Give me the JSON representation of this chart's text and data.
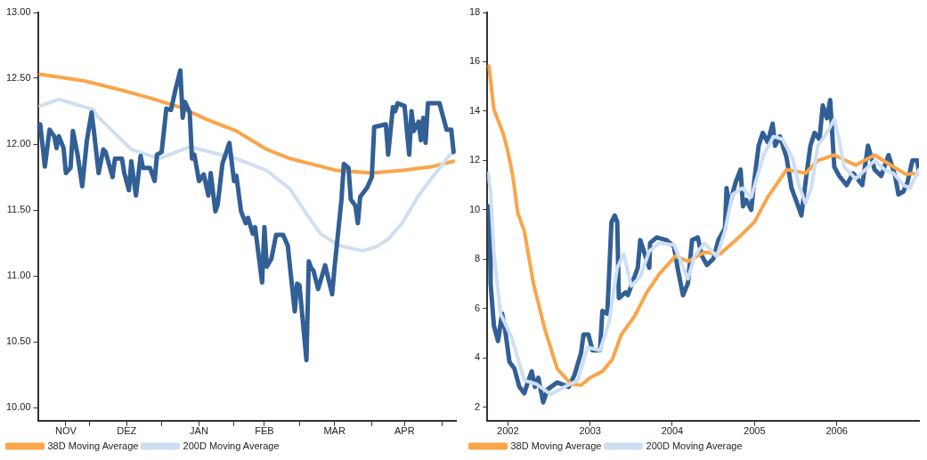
{
  "chart_data": [
    {
      "type": "line",
      "legend": "bottom left",
      "xlim": [
        "2006-11-09",
        "2007-05-07"
      ],
      "xticks": [
        {
          "value": "2006-11-21",
          "label": "NOV"
        },
        {
          "value": "2006-12-01",
          "label": null
        },
        {
          "value": "2006-12-17",
          "label": "DEZ"
        },
        {
          "value": "2007-01-01",
          "label": null
        },
        {
          "value": "2007-01-17",
          "label": "JAN"
        },
        {
          "value": "2007-02-01",
          "label": null
        },
        {
          "value": "2007-02-14",
          "label": "FEB"
        },
        {
          "value": "2007-03-01",
          "label": null
        },
        {
          "value": "2007-03-16",
          "label": "MAR"
        },
        {
          "value": "2007-04-01",
          "label": null
        },
        {
          "value": "2007-04-15",
          "label": "APR"
        },
        {
          "value": "2007-05-01",
          "label": null
        }
      ],
      "ylim": [
        9.9,
        13
      ],
      "yticks": [
        {
          "value": 10,
          "label": "10.00"
        },
        {
          "value": 10.5,
          "label": "10.50"
        },
        {
          "value": 11,
          "label": "11.00"
        },
        {
          "value": 11.5,
          "label": "11.50"
        },
        {
          "value": 12,
          "label": "12.00"
        },
        {
          "value": 12.5,
          "label": "12.50"
        },
        {
          "value": 13,
          "label": "13.00"
        }
      ],
      "series": [
        {
          "name": "38D Moving Average",
          "color": "#f9a54a",
          "x": [
            "2006-11-10",
            "2006-11-29",
            "2006-12-17",
            "2006-12-27",
            "2007-01-09",
            "2007-01-20",
            "2007-02-02",
            "2007-02-15",
            "2007-02-25",
            "2007-03-17",
            "2007-04-01",
            "2007-04-14",
            "2007-04-27",
            "2007-05-06"
          ],
          "values": [
            12.53,
            12.48,
            12.4,
            12.35,
            12.28,
            12.19,
            12.1,
            11.96,
            11.89,
            11.8,
            11.78,
            11.8,
            11.83,
            11.87
          ]
        },
        {
          "name": "200D Moving Average",
          "color": "#cfdff2",
          "x": [
            "2006-11-10",
            "2006-11-18",
            "2006-12-03",
            "2006-12-04",
            "2006-12-19",
            "2006-12-31",
            "2007-01-13",
            "2007-02-02",
            "2007-02-15",
            "2007-02-25",
            "2007-03-04",
            "2007-03-10",
            "2007-03-18",
            "2007-03-28",
            "2007-04-03",
            "2007-04-08",
            "2007-04-14",
            "2007-04-21",
            "2007-04-27",
            "2007-05-04",
            "2007-05-06"
          ],
          "values": [
            12.29,
            12.34,
            12.26,
            12.22,
            11.96,
            11.89,
            11.98,
            11.89,
            11.8,
            11.66,
            11.47,
            11.32,
            11.23,
            11.19,
            11.22,
            11.28,
            11.4,
            11.61,
            11.75,
            11.91,
            11.94
          ]
        },
        {
          "color": "#315f96",
          "x": [
            "2006-11-10",
            "2006-11-12",
            "2006-11-14",
            "2006-11-16",
            "2006-11-17",
            "2006-11-18",
            "2006-11-20",
            "2006-11-21",
            "2006-11-23",
            "2006-11-24",
            "2006-11-26",
            "2006-11-28",
            "2006-11-30",
            "2006-12-02",
            "2006-12-03",
            "2006-12-05",
            "2006-12-07",
            "2006-12-08",
            "2006-12-11",
            "2006-12-12",
            "2006-12-15",
            "2006-12-16",
            "2006-12-18",
            "2006-12-19",
            "2006-12-21",
            "2006-12-23",
            "2006-12-24",
            "2006-12-27",
            "2006-12-29",
            "2006-12-30",
            "2007-01-01",
            "2007-01-03",
            "2007-01-05",
            "2007-01-07",
            "2007-01-09",
            "2007-01-10",
            "2007-01-11",
            "2007-01-13",
            "2007-01-14",
            "2007-01-15",
            "2007-01-17",
            "2007-01-19",
            "2007-01-21",
            "2007-01-22",
            "2007-01-24",
            "2007-01-25",
            "2007-01-27",
            "2007-01-30",
            "2007-02-01",
            "2007-02-02",
            "2007-02-04",
            "2007-02-06",
            "2007-02-07",
            "2007-02-09",
            "2007-02-10",
            "2007-02-13",
            "2007-02-14",
            "2007-02-15",
            "2007-02-17",
            "2007-02-19",
            "2007-02-22",
            "2007-02-24",
            "2007-02-25",
            "2007-02-27",
            "2007-02-28",
            "2007-03-01",
            "2007-03-04",
            "2007-03-05",
            "2007-03-06",
            "2007-03-07",
            "2007-03-09",
            "2007-03-12",
            "2007-03-15",
            "2007-03-16",
            "2007-03-19",
            "2007-03-20",
            "2007-03-22",
            "2007-03-23",
            "2007-03-25",
            "2007-03-26",
            "2007-03-27",
            "2007-03-30",
            "2007-04-01",
            "2007-04-02",
            "2007-04-07",
            "2007-04-08",
            "2007-04-10",
            "2007-04-11",
            "2007-04-12",
            "2007-04-15",
            "2007-04-17",
            "2007-04-18",
            "2007-04-19",
            "2007-04-21",
            "2007-04-22",
            "2007-04-23",
            "2007-04-24",
            "2007-04-25",
            "2007-04-30",
            "2007-05-01",
            "2007-05-03",
            "2007-05-05",
            "2007-05-06"
          ],
          "values": [
            12.15,
            11.83,
            12.11,
            12.06,
            11.97,
            12.06,
            11.97,
            11.78,
            11.82,
            12.1,
            11.92,
            11.68,
            12.03,
            12.24,
            12.1,
            11.78,
            11.96,
            11.94,
            11.75,
            11.89,
            11.89,
            11.78,
            11.65,
            11.87,
            11.61,
            11.91,
            11.82,
            11.82,
            11.72,
            11.92,
            11.94,
            12.27,
            12.26,
            12.42,
            12.56,
            12.2,
            12.32,
            12.24,
            11.89,
            11.92,
            11.72,
            11.77,
            11.61,
            11.78,
            11.49,
            11.54,
            11.85,
            12.01,
            11.72,
            11.76,
            11.49,
            11.4,
            11.44,
            11.32,
            11.37,
            10.95,
            11.37,
            11.07,
            11.13,
            11.31,
            11.31,
            11.23,
            11.06,
            10.73,
            10.94,
            10.93,
            10.36,
            11.11,
            11.06,
            11.04,
            10.9,
            11.08,
            10.86,
            11.06,
            11.58,
            11.85,
            11.82,
            11.58,
            11.53,
            11.4,
            11.6,
            11.67,
            11.75,
            12.13,
            12.15,
            11.92,
            12.28,
            12.25,
            12.31,
            12.29,
            11.92,
            12.25,
            12.1,
            12.17,
            12.03,
            12.2,
            12.01,
            12.31,
            12.31,
            12.24,
            12.11,
            12.11,
            11.94
          ]
        }
      ]
    },
    {
      "type": "line",
      "legend": "bottom left",
      "xlim": [
        2002.25,
        2007.5
      ],
      "xticks": [
        {
          "value": 2002.5,
          "label": "2002"
        },
        {
          "value": 2003.5,
          "label": "2003"
        },
        {
          "value": 2004.5,
          "label": "2004"
        },
        {
          "value": 2005.5,
          "label": "2005"
        },
        {
          "value": 2006.5,
          "label": "2006"
        }
      ],
      "ylim": [
        1.45,
        18
      ],
      "yticks": [
        2,
        4,
        6,
        8,
        10,
        12,
        14,
        16,
        18
      ],
      "series": [
        {
          "color": "#315f96",
          "x": [
            2002.25,
            2002.27,
            2002.28,
            2002.29,
            2002.33,
            2002.38,
            2002.43,
            2002.47,
            2002.52,
            2002.58,
            2002.64,
            2002.7,
            2002.75,
            2002.79,
            2002.83,
            2002.87,
            2002.93,
            2002.98,
            2003.1,
            2003.24,
            2003.31,
            2003.39,
            2003.42,
            2003.48,
            2003.53,
            2003.62,
            2003.65,
            2003.71,
            2003.76,
            2003.8,
            2003.83,
            2003.85,
            2003.93,
            2003.96,
            2004.08,
            2004.11,
            2004.22,
            2004.23,
            2004.31,
            2004.43,
            2004.52,
            2004.57,
            2004.63,
            2004.69,
            2004.74,
            2004.81,
            2004.86,
            2004.92,
            2005,
            2005.06,
            2005.14,
            2005.16,
            2005.19,
            2005.27,
            2005.33,
            2005.36,
            2005.4,
            2005.46,
            2005.5,
            2005.55,
            2005.6,
            2005.66,
            2005.72,
            2005.75,
            2005.81,
            2005.89,
            2005.95,
            2006.02,
            2006.07,
            2006.13,
            2006.18,
            2006.23,
            2006.29,
            2006.33,
            2006.38,
            2006.42,
            2006.47,
            2006.53,
            2006.62,
            2006.7,
            2006.81,
            2006.88,
            2006.96,
            2007.04,
            2007.13,
            2007.21,
            2007.25,
            2007.31,
            2007.36,
            2007.42,
            2007.48,
            2007.5
          ],
          "values": [
            10,
            10.14,
            9.5,
            7.02,
            5.31,
            4.68,
            5.79,
            5.05,
            3.82,
            3.56,
            2.82,
            2.56,
            3.08,
            3.45,
            2.82,
            3.19,
            2.19,
            2.71,
            3,
            2.82,
            3.3,
            4.19,
            4.94,
            4.94,
            4.3,
            4.3,
            5.9,
            5.79,
            9.5,
            9.77,
            9.5,
            6.42,
            6.65,
            6.54,
            7.65,
            8.77,
            7.65,
            8.65,
            8.88,
            8.77,
            8.51,
            7.54,
            6.54,
            7.02,
            8.77,
            8.88,
            8.13,
            7.76,
            8.02,
            8.77,
            9.25,
            10.88,
            10.14,
            11.11,
            11.63,
            10.14,
            10.4,
            10,
            11.26,
            12.6,
            13.12,
            12.74,
            13.49,
            12.6,
            12.97,
            12.11,
            10.88,
            10.25,
            9.77,
            11.37,
            12.6,
            13.12,
            12.86,
            14.23,
            13.71,
            14.45,
            11.74,
            11.37,
            11,
            11.48,
            11,
            12.6,
            11.63,
            11.37,
            12.22,
            11.37,
            10.62,
            10.74,
            11.11,
            12,
            12,
            11.48
          ]
        },
        {
          "name": "38D Moving Average",
          "color": "#f9a54a",
          "x": [
            2002.27,
            2002.33,
            2002.44,
            2002.5,
            2002.56,
            2002.62,
            2002.7,
            2002.81,
            2002.95,
            2003.1,
            2003.27,
            2003.39,
            2003.5,
            2003.65,
            2003.77,
            2003.88,
            2004.04,
            2004.19,
            2004.34,
            2004.54,
            2004.69,
            2004.89,
            2005.08,
            2005.31,
            2005.5,
            2005.66,
            2005.89,
            2006.12,
            2006.27,
            2006.47,
            2006.73,
            2006.96,
            2007.19,
            2007.34,
            2007.5
          ],
          "values": [
            15.83,
            14.08,
            13.12,
            12.37,
            11.37,
            9.88,
            9.14,
            7.02,
            5.16,
            3.56,
            2.93,
            2.89,
            3.19,
            3.45,
            3.93,
            4.94,
            5.68,
            6.65,
            7.39,
            8.13,
            7.91,
            8.28,
            8.21,
            8.88,
            9.51,
            10.51,
            11.63,
            11.48,
            12,
            12.22,
            11.81,
            12.22,
            11.74,
            11.44,
            11.48
          ]
        },
        {
          "name": "200D Moving Average",
          "color": "#cfdff2",
          "x": [
            2002.26,
            2002.29,
            2002.33,
            2002.41,
            2002.55,
            2002.7,
            2002.85,
            2003.02,
            2003.19,
            2003.35,
            2003.47,
            2003.62,
            2003.73,
            2003.83,
            2003.91,
            2004,
            2004.11,
            2004.22,
            2004.34,
            2004.52,
            2004.69,
            2004.77,
            2004.89,
            2005.04,
            2005.14,
            2005.23,
            2005.35,
            2005.46,
            2005.61,
            2005.73,
            2005.84,
            2005.96,
            2006.04,
            2006.12,
            2006.19,
            2006.27,
            2006.38,
            2006.47,
            2006.52,
            2006.59,
            2006.73,
            2006.85,
            2006.96,
            2007.08,
            2007.19,
            2007.31,
            2007.39,
            2007.5
          ],
          "values": [
            11.48,
            10.74,
            8.28,
            5.79,
            4.79,
            3.08,
            2.93,
            2.52,
            2.82,
            3.08,
            4.42,
            4.3,
            5.42,
            7.65,
            8.21,
            6.91,
            7.28,
            8.32,
            8.65,
            8.58,
            7.2,
            8.13,
            8.65,
            8.1,
            9.14,
            10.62,
            10.88,
            10.51,
            12.22,
            12.97,
            12.86,
            12.11,
            11,
            10.25,
            10.88,
            12.6,
            13.12,
            13.67,
            12.97,
            11.74,
            11.26,
            11.63,
            12,
            11.63,
            11.48,
            11,
            10.88,
            11.63
          ]
        }
      ]
    }
  ]
}
